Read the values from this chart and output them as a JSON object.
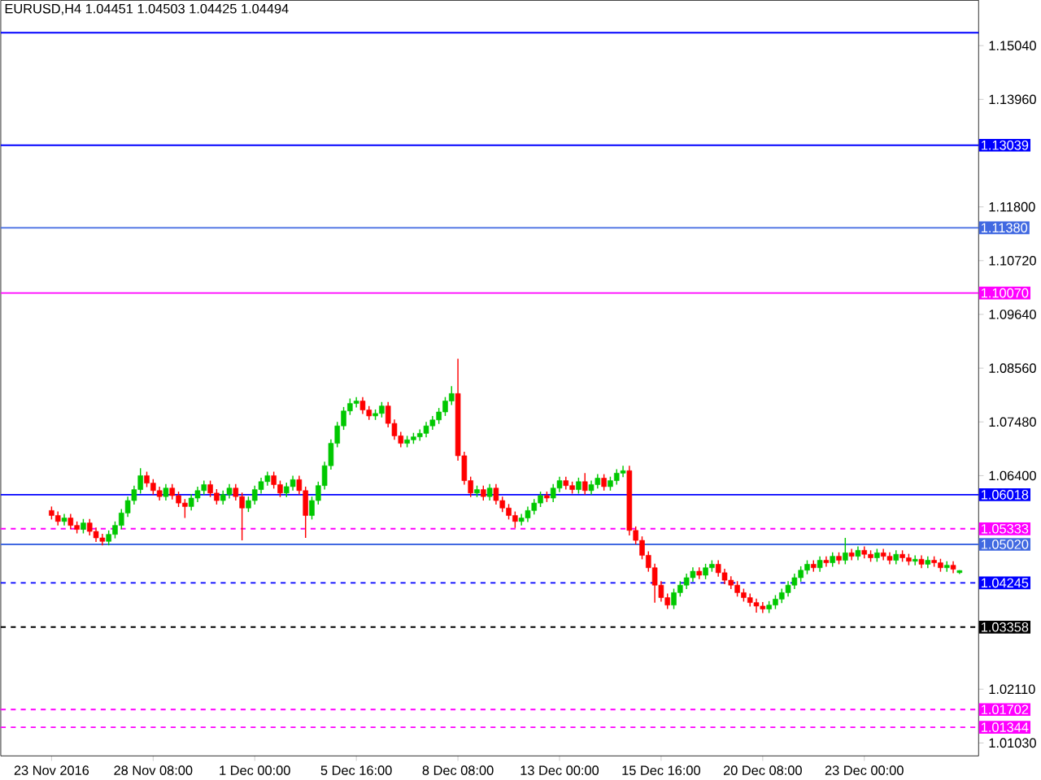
{
  "chart_data": {
    "type": "candlestick",
    "title": "EURUSD,H4  1.04451 1.04503 1.04425 1.04494",
    "categories": [
      "23 Nov 2016",
      null,
      null,
      null,
      null,
      null,
      null,
      null,
      null,
      null,
      null,
      null,
      null,
      null,
      null,
      null,
      "28 Nov 08:00",
      null,
      null,
      null,
      null,
      null,
      null,
      null,
      null,
      null,
      null,
      null,
      null,
      null,
      null,
      null,
      "1 Dec 00:00",
      null,
      null,
      null,
      null,
      null,
      null,
      null,
      null,
      null,
      null,
      null,
      null,
      null,
      null,
      null,
      "5 Dec 16:00",
      null,
      null,
      null,
      null,
      null,
      null,
      null,
      null,
      null,
      null,
      null,
      null,
      null,
      null,
      null,
      "8 Dec 08:00",
      null,
      null,
      null,
      null,
      null,
      null,
      null,
      null,
      null,
      null,
      null,
      null,
      null,
      null,
      null,
      "13 Dec 00:00",
      null,
      null,
      null,
      null,
      null,
      null,
      null,
      null,
      null,
      null,
      null,
      null,
      null,
      null,
      null,
      "15 Dec 16:00",
      null,
      null,
      null,
      null,
      null,
      null,
      null,
      null,
      null,
      null,
      null,
      null,
      null,
      null,
      null,
      "20 Dec 08:00",
      null,
      null,
      null,
      null,
      null,
      null,
      null,
      null,
      null,
      null,
      null,
      null,
      null,
      null,
      null,
      "23 Dec 00:00",
      null,
      null,
      null,
      null,
      null,
      null,
      null,
      null,
      null,
      null,
      null,
      null,
      null,
      null,
      null
    ],
    "ohlc": [
      [
        1.057,
        1.0578,
        1.0552,
        1.056
      ],
      [
        1.056,
        1.0568,
        1.054,
        1.0548
      ],
      [
        1.0548,
        1.0563,
        1.054,
        1.0555
      ],
      [
        1.0555,
        1.0563,
        1.0532,
        1.054
      ],
      [
        1.054,
        1.0548,
        1.0524,
        1.0532
      ],
      [
        1.0532,
        1.0553,
        1.0524,
        1.0545
      ],
      [
        1.0545,
        1.0553,
        1.052,
        1.0528
      ],
      [
        1.0528,
        1.0536,
        1.0507,
        1.0515
      ],
      [
        1.0515,
        1.0523,
        1.05,
        1.0508
      ],
      [
        1.0508,
        1.053,
        1.05,
        1.0522
      ],
      [
        1.0522,
        1.0548,
        1.0514,
        1.054
      ],
      [
        1.054,
        1.0573,
        1.0532,
        1.0565
      ],
      [
        1.0565,
        1.0598,
        1.0557,
        1.059
      ],
      [
        1.059,
        1.062,
        1.0582,
        1.0612
      ],
      [
        1.0612,
        1.0655,
        1.0604,
        1.064
      ],
      [
        1.064,
        1.0648,
        1.0617,
        1.0625
      ],
      [
        1.0625,
        1.0633,
        1.0602,
        1.061
      ],
      [
        1.061,
        1.0618,
        1.059,
        1.0598
      ],
      [
        1.0598,
        1.0623,
        1.059,
        1.0615
      ],
      [
        1.0615,
        1.0623,
        1.0592,
        1.06
      ],
      [
        1.06,
        1.0608,
        1.0577,
        1.0585
      ],
      [
        1.0585,
        1.0593,
        1.0555,
        1.0578
      ],
      [
        1.0578,
        1.0603,
        1.057,
        1.0595
      ],
      [
        1.0595,
        1.0618,
        1.0587,
        1.061
      ],
      [
        1.061,
        1.063,
        1.0602,
        1.0622
      ],
      [
        1.0622,
        1.063,
        1.0597,
        1.0605
      ],
      [
        1.0605,
        1.0613,
        1.0582,
        1.059
      ],
      [
        1.059,
        1.061,
        1.0582,
        1.0602
      ],
      [
        1.0602,
        1.0623,
        1.0594,
        1.0615
      ],
      [
        1.0615,
        1.0623,
        1.059,
        1.0598
      ],
      [
        1.0598,
        1.0606,
        1.051,
        1.0575
      ],
      [
        1.0575,
        1.0598,
        1.0567,
        1.059
      ],
      [
        1.059,
        1.062,
        1.0582,
        1.0612
      ],
      [
        1.0612,
        1.0636,
        1.0604,
        1.0628
      ],
      [
        1.0628,
        1.0648,
        1.062,
        1.064
      ],
      [
        1.064,
        1.0648,
        1.0614,
        1.0622
      ],
      [
        1.0622,
        1.063,
        1.0597,
        1.0605
      ],
      [
        1.0605,
        1.0626,
        1.0597,
        1.0618
      ],
      [
        1.0618,
        1.064,
        1.061,
        1.0632
      ],
      [
        1.0632,
        1.064,
        1.0602,
        1.061
      ],
      [
        1.061,
        1.0618,
        1.0515,
        1.056
      ],
      [
        1.056,
        1.0598,
        1.0552,
        1.059
      ],
      [
        1.059,
        1.0628,
        1.0582,
        1.062
      ],
      [
        1.062,
        1.0668,
        1.0612,
        1.066
      ],
      [
        1.066,
        1.0713,
        1.0652,
        1.0705
      ],
      [
        1.0705,
        1.0748,
        1.0697,
        1.074
      ],
      [
        1.074,
        1.0778,
        1.0732,
        1.077
      ],
      [
        1.077,
        1.0795,
        1.0762,
        1.0785
      ],
      [
        1.0785,
        1.0798,
        1.0777,
        1.079
      ],
      [
        1.079,
        1.0798,
        1.0764,
        1.0772
      ],
      [
        1.0772,
        1.078,
        1.0752,
        1.076
      ],
      [
        1.076,
        1.0773,
        1.0752,
        1.0765
      ],
      [
        1.0765,
        1.0788,
        1.0757,
        1.078
      ],
      [
        1.078,
        1.0788,
        1.0737,
        1.0745
      ],
      [
        1.0745,
        1.0753,
        1.0712,
        1.072
      ],
      [
        1.072,
        1.0728,
        1.0697,
        1.0705
      ],
      [
        1.0705,
        1.072,
        1.0697,
        1.0712
      ],
      [
        1.0712,
        1.0726,
        1.0704,
        1.0718
      ],
      [
        1.0718,
        1.0733,
        1.071,
        1.0725
      ],
      [
        1.0725,
        1.0748,
        1.0717,
        1.074
      ],
      [
        1.074,
        1.076,
        1.0732,
        1.0752
      ],
      [
        1.0752,
        1.0776,
        1.0744,
        1.0768
      ],
      [
        1.0768,
        1.0798,
        1.076,
        1.079
      ],
      [
        1.079,
        1.082,
        1.0782,
        1.0805
      ],
      [
        1.0805,
        1.0875,
        1.067,
        1.068
      ],
      [
        1.068,
        1.0688,
        1.0622,
        1.063
      ],
      [
        1.063,
        1.0638,
        1.0597,
        1.0605
      ],
      [
        1.0605,
        1.062,
        1.0597,
        1.0612
      ],
      [
        1.0612,
        1.062,
        1.059,
        1.0598
      ],
      [
        1.0598,
        1.0623,
        1.059,
        1.0615
      ],
      [
        1.0615,
        1.0623,
        1.0582,
        1.059
      ],
      [
        1.059,
        1.0598,
        1.0567,
        1.0575
      ],
      [
        1.0575,
        1.0583,
        1.0552,
        1.056
      ],
      [
        1.056,
        1.0568,
        1.0535,
        1.0548
      ],
      [
        1.0548,
        1.0563,
        1.054,
        1.0555
      ],
      [
        1.0555,
        1.0578,
        1.0547,
        1.057
      ],
      [
        1.057,
        1.0593,
        1.0562,
        1.0585
      ],
      [
        1.0585,
        1.0608,
        1.0577,
        1.06
      ],
      [
        1.06,
        1.0608,
        1.0587,
        1.0595
      ],
      [
        1.0595,
        1.0623,
        1.0587,
        1.0615
      ],
      [
        1.0615,
        1.0638,
        1.0607,
        1.063
      ],
      [
        1.063,
        1.0638,
        1.0612,
        1.062
      ],
      [
        1.062,
        1.0628,
        1.0604,
        1.0612
      ],
      [
        1.0612,
        1.0636,
        1.0604,
        1.0628
      ],
      [
        1.0628,
        1.0645,
        1.0602,
        1.061
      ],
      [
        1.061,
        1.063,
        1.0602,
        1.0622
      ],
      [
        1.0622,
        1.0643,
        1.0614,
        1.0635
      ],
      [
        1.0635,
        1.0643,
        1.061,
        1.0618
      ],
      [
        1.0618,
        1.0638,
        1.061,
        1.063
      ],
      [
        1.063,
        1.0653,
        1.0622,
        1.0645
      ],
      [
        1.0645,
        1.066,
        1.0637,
        1.065
      ],
      [
        1.065,
        1.066,
        1.052,
        1.053
      ],
      [
        1.053,
        1.0538,
        1.0502,
        1.051
      ],
      [
        1.051,
        1.0518,
        1.0472,
        1.048
      ],
      [
        1.048,
        1.0488,
        1.0447,
        1.0455
      ],
      [
        1.0455,
        1.0463,
        1.0385,
        1.042
      ],
      [
        1.042,
        1.0428,
        1.0387,
        1.0395
      ],
      [
        1.0395,
        1.0403,
        1.0372,
        1.038
      ],
      [
        1.038,
        1.0413,
        1.0372,
        1.0405
      ],
      [
        1.0405,
        1.0428,
        1.0397,
        1.042
      ],
      [
        1.042,
        1.0443,
        1.0412,
        1.0435
      ],
      [
        1.0435,
        1.0456,
        1.0427,
        1.0448
      ],
      [
        1.0448,
        1.0456,
        1.0432,
        1.044
      ],
      [
        1.044,
        1.0463,
        1.0432,
        1.0455
      ],
      [
        1.0455,
        1.047,
        1.0447,
        1.0462
      ],
      [
        1.0462,
        1.047,
        1.0437,
        1.0445
      ],
      [
        1.0445,
        1.0453,
        1.0422,
        1.043
      ],
      [
        1.043,
        1.0438,
        1.0412,
        1.042
      ],
      [
        1.042,
        1.0428,
        1.0397,
        1.0405
      ],
      [
        1.0405,
        1.0413,
        1.0387,
        1.0395
      ],
      [
        1.0395,
        1.0403,
        1.0377,
        1.0385
      ],
      [
        1.0385,
        1.0393,
        1.0365,
        1.0378
      ],
      [
        1.0378,
        1.0386,
        1.0364,
        1.0372
      ],
      [
        1.0372,
        1.0388,
        1.0364,
        1.038
      ],
      [
        1.038,
        1.04,
        1.0372,
        1.0392
      ],
      [
        1.0392,
        1.0413,
        1.0384,
        1.0405
      ],
      [
        1.0405,
        1.0428,
        1.0397,
        1.042
      ],
      [
        1.042,
        1.0443,
        1.0412,
        1.0435
      ],
      [
        1.0435,
        1.0458,
        1.0427,
        1.045
      ],
      [
        1.045,
        1.047,
        1.0442,
        1.0462
      ],
      [
        1.0462,
        1.047,
        1.0447,
        1.0455
      ],
      [
        1.0455,
        1.0478,
        1.0447,
        1.047
      ],
      [
        1.047,
        1.0478,
        1.0457,
        1.0465
      ],
      [
        1.0465,
        1.0486,
        1.0457,
        1.0478
      ],
      [
        1.0478,
        1.0486,
        1.0462,
        1.047
      ],
      [
        1.047,
        1.0515,
        1.0462,
        1.0485
      ],
      [
        1.0485,
        1.0493,
        1.047,
        1.0478
      ],
      [
        1.0478,
        1.0498,
        1.047,
        1.049
      ],
      [
        1.049,
        1.0498,
        1.0474,
        1.0482
      ],
      [
        1.0482,
        1.049,
        1.0467,
        1.0475
      ],
      [
        1.0475,
        1.0493,
        1.0467,
        1.0485
      ],
      [
        1.0485,
        1.0493,
        1.047,
        1.0478
      ],
      [
        1.0478,
        1.0486,
        1.0462,
        1.047
      ],
      [
        1.047,
        1.049,
        1.0462,
        1.0482
      ],
      [
        1.0482,
        1.049,
        1.0467,
        1.0475
      ],
      [
        1.0475,
        1.0483,
        1.046,
        1.0468
      ],
      [
        1.0468,
        1.048,
        1.046,
        1.0472
      ],
      [
        1.0472,
        1.048,
        1.0454,
        1.0462
      ],
      [
        1.0462,
        1.0478,
        1.0454,
        1.047
      ],
      [
        1.047,
        1.0478,
        1.0457,
        1.0465
      ],
      [
        1.0465,
        1.0473,
        1.0447,
        1.0455
      ],
      [
        1.0455,
        1.0468,
        1.0447,
        1.046
      ],
      [
        1.046,
        1.0468,
        1.0444,
        1.0452
      ],
      [
        1.04451,
        1.04503,
        1.04425,
        1.04494
      ]
    ],
    "ylim": [
      1.0077,
      1.1595
    ],
    "yticks": [
      {
        "value": 1.1504,
        "label": "1.15040"
      },
      {
        "value": 1.1396,
        "label": "1.13960"
      },
      {
        "value": 1.118,
        "label": "1.11800"
      },
      {
        "value": 1.1072,
        "label": "1.10720"
      },
      {
        "value": 1.0964,
        "label": "1.09640"
      },
      {
        "value": 1.0856,
        "label": "1.08560"
      },
      {
        "value": 1.0748,
        "label": "1.07480"
      },
      {
        "value": 1.064,
        "label": "1.06400"
      },
      {
        "value": 1.0211,
        "label": "1.02110"
      },
      {
        "value": 1.0103,
        "label": "1.01030"
      }
    ],
    "ref_lines": [
      {
        "axis": "y",
        "value": 1.153,
        "color": "#0000ff",
        "line_style": "solid"
      },
      {
        "axis": "y",
        "value": 1.13039,
        "label": "1.13039",
        "color": "#0000ff",
        "line_style": "solid"
      },
      {
        "axis": "y",
        "value": 1.1138,
        "label": "1.11380",
        "color": "#4169e1",
        "line_style": "solid"
      },
      {
        "axis": "y",
        "value": 1.1007,
        "label": "1.10070",
        "color": "#ff00ff",
        "line_style": "solid"
      },
      {
        "axis": "y",
        "value": 1.06018,
        "label": "1.06018",
        "color": "#0000ff",
        "line_style": "solid"
      },
      {
        "axis": "y",
        "value": 1.05333,
        "label": "1.05333",
        "color": "#ff00ff",
        "line_style": "dashed"
      },
      {
        "axis": "y",
        "value": 1.0502,
        "label": "1.05020",
        "color": "#4169e1",
        "line_style": "solid"
      },
      {
        "axis": "y",
        "value": 1.04245,
        "label": "1.04245",
        "color": "#0000ff",
        "line_style": "dashed"
      },
      {
        "axis": "y",
        "value": 1.03358,
        "label": "1.03358",
        "color": "#000000",
        "line_style": "dashed"
      },
      {
        "axis": "y",
        "value": 1.01702,
        "label": "1.01702",
        "color": "#ff00ff",
        "line_style": "dashed"
      },
      {
        "axis": "y",
        "value": 1.01344,
        "label": "1.01344",
        "color": "#ff00ff",
        "line_style": "dashed"
      }
    ],
    "grid": false
  }
}
